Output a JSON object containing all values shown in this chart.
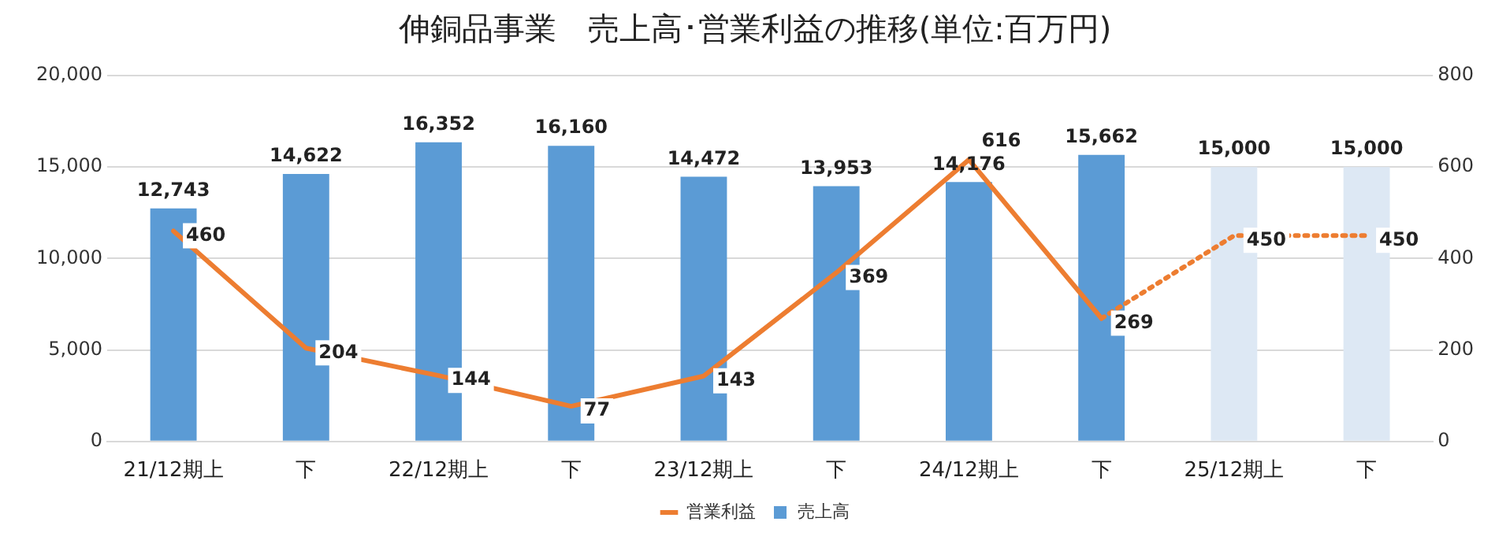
{
  "chart_data": {
    "type": "bar",
    "title": "伸銅品事業　売上高･営業利益の推移(単位:百万円)",
    "categories": [
      "21/12期上",
      "下",
      "22/12期上",
      "下",
      "23/12期上",
      "下",
      "24/12期上",
      "下",
      "25/12期上",
      "下"
    ],
    "series": [
      {
        "name": "売上高",
        "colors": [
          "#5b9bd5",
          "#5b9bd5",
          "#5b9bd5",
          "#5b9bd5",
          "#5b9bd5",
          "#5b9bd5",
          "#5b9bd5",
          "#5b9bd5",
          "#dde8f4",
          "#dde8f4"
        ],
        "values": [
          12743,
          14622,
          16352,
          16160,
          14472,
          13953,
          14176,
          15662,
          15000,
          15000
        ],
        "value_labels": [
          "12,743",
          "14,622",
          "16,352",
          "16,160",
          "14,472",
          "13,953",
          "14,176",
          "15,662",
          "15,000",
          "15,000"
        ]
      },
      {
        "name": "営業利益",
        "type": "line",
        "axis": "y2",
        "color": "#ed7d31",
        "line_style": "solid",
        "values": [
          460,
          204,
          144,
          77,
          143,
          369,
          616,
          269,
          null,
          null
        ],
        "value_labels": [
          "460",
          "204",
          "144",
          "77",
          "143",
          "369",
          "616",
          "269",
          null,
          null
        ]
      },
      {
        "type": "line",
        "axis": "y2",
        "color": "#ed7d31",
        "line_style": "dotted",
        "values": [
          null,
          null,
          null,
          null,
          null,
          null,
          null,
          269,
          450,
          450
        ],
        "value_labels": [
          null,
          null,
          null,
          null,
          null,
          null,
          null,
          null,
          "450",
          "450"
        ]
      }
    ],
    "ylim": [
      0,
      20000
    ],
    "yticks": [
      {
        "value": 0,
        "label": "0"
      },
      {
        "value": 5000,
        "label": "5,000"
      },
      {
        "value": 10000,
        "label": "10,000"
      },
      {
        "value": 15000,
        "label": "15,000"
      },
      {
        "value": 20000,
        "label": "20,000"
      }
    ],
    "y2lim": [
      0,
      800
    ],
    "y2ticks": [
      0,
      200,
      400,
      600,
      800
    ],
    "grid": "y",
    "legend": "bottom",
    "marker": "none"
  }
}
